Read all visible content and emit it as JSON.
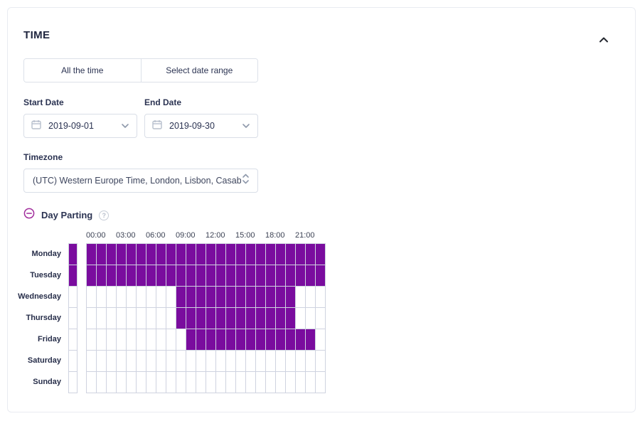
{
  "panel": {
    "title": "TIME",
    "collapse_icon": "chevron-up"
  },
  "mode_toggle": {
    "all_time_label": "All the time",
    "date_range_label": "Select date range"
  },
  "start_date": {
    "label": "Start Date",
    "value": "2019-09-01",
    "icon": "calendar",
    "dropdown_icon": "chevron-down"
  },
  "end_date": {
    "label": "End Date",
    "value": "2019-09-30",
    "icon": "calendar",
    "dropdown_icon": "chevron-down"
  },
  "timezone": {
    "label": "Timezone",
    "value": "(UTC) Western Europe Time, London, Lisbon, Casabl",
    "spinner_icon": "up-down-chevrons"
  },
  "day_parting": {
    "title": "Day Parting",
    "collapse_icon": "minus-circle",
    "help_icon": "question-circle",
    "help_glyph": "?",
    "hours_per_day": 24,
    "hour_labels": [
      "00:00",
      "03:00",
      "06:00",
      "09:00",
      "12:00",
      "15:00",
      "18:00",
      "21:00"
    ],
    "days": [
      {
        "label": "Monday",
        "row_toggle_selected": true,
        "selected_range": {
          "start": 0,
          "end": 24
        }
      },
      {
        "label": "Tuesday",
        "row_toggle_selected": true,
        "selected_range": {
          "start": 0,
          "end": 24
        }
      },
      {
        "label": "Wednesday",
        "row_toggle_selected": false,
        "selected_range": {
          "start": 9,
          "end": 21
        }
      },
      {
        "label": "Thursday",
        "row_toggle_selected": false,
        "selected_range": {
          "start": 9,
          "end": 21
        }
      },
      {
        "label": "Friday",
        "row_toggle_selected": false,
        "selected_range": {
          "start": 10,
          "end": 23
        }
      },
      {
        "label": "Saturday",
        "row_toggle_selected": false,
        "selected_range": null
      },
      {
        "label": "Sunday",
        "row_toggle_selected": false,
        "selected_range": null
      }
    ]
  },
  "colors": {
    "selected_cell": "#7a0c9e",
    "grid_border": "#cfd3e0",
    "day_parting_icon": "#a12c9c",
    "title_text": "#20263f",
    "body_text": "#2b3352",
    "icon_gray": "#8f99ab"
  }
}
